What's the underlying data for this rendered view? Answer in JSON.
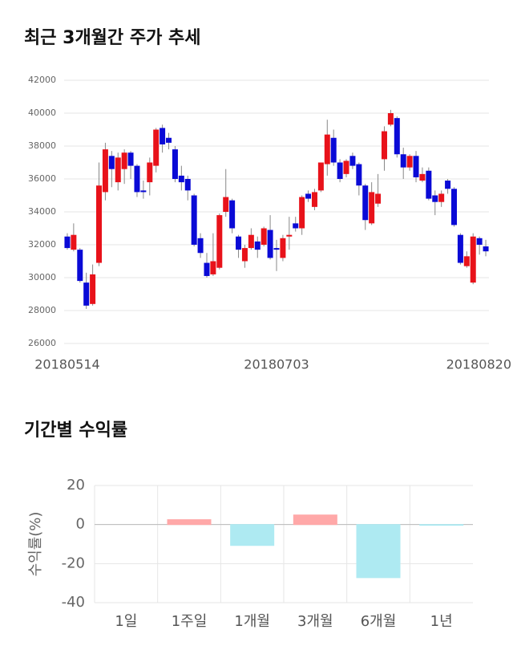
{
  "chart_data": [
    {
      "type": "candlestick",
      "title": "최근 3개월간 주가 추세",
      "categories": [
        "20180514",
        null,
        null,
        null,
        null,
        null,
        null,
        null,
        null,
        null,
        null,
        null,
        null,
        null,
        null,
        null,
        null,
        null,
        null,
        null,
        null,
        null,
        null,
        null,
        null,
        null,
        null,
        null,
        null,
        null,
        null,
        null,
        null,
        "20180703",
        null,
        null,
        null,
        null,
        null,
        null,
        null,
        null,
        null,
        null,
        null,
        null,
        null,
        null,
        null,
        null,
        null,
        null,
        null,
        null,
        null,
        null,
        null,
        null,
        null,
        null,
        null,
        null,
        null,
        null,
        null,
        null,
        "20180820"
      ],
      "open": [
        32500,
        31700,
        31700,
        29700,
        28400,
        30900,
        35200,
        37400,
        35800,
        36600,
        37600,
        36800,
        35300,
        35800,
        36800,
        39100,
        38500,
        37800,
        36200,
        36000,
        35000,
        32400,
        30900,
        30200,
        30600,
        34000,
        34700,
        32500,
        31000,
        31800,
        32200,
        32000,
        32900,
        31800,
        31200,
        32500,
        33300,
        33000,
        35100,
        34300,
        35300,
        36900,
        38500,
        37000,
        36300,
        37400,
        36900,
        35600,
        33300,
        34500,
        37200,
        39300,
        39700,
        37500,
        36700,
        37400,
        35900,
        36500,
        35000,
        34600,
        35900,
        35400,
        32600,
        30700,
        29700,
        32400,
        31900
      ],
      "high": [
        32700,
        33300,
        31800,
        30300,
        30800,
        37000,
        38200,
        37700,
        37600,
        37800,
        37700,
        36900,
        35900,
        37300,
        39100,
        39300,
        38800,
        38000,
        36800,
        36200,
        35100,
        32700,
        31500,
        32700,
        33900,
        36600,
        34800,
        32600,
        32000,
        33000,
        32500,
        33100,
        33800,
        32300,
        32600,
        33700,
        33700,
        35000,
        35300,
        35400,
        37000,
        39600,
        39000,
        37200,
        37200,
        37600,
        37000,
        35700,
        35800,
        36300,
        39200,
        40200,
        39800,
        37900,
        37500,
        37700,
        36700,
        36700,
        35300,
        35300,
        36000,
        35500,
        32700,
        31600,
        32700,
        32500,
        32300
      ],
      "low": [
        31700,
        31600,
        29700,
        28100,
        28300,
        30700,
        34700,
        35500,
        35300,
        35700,
        36000,
        34900,
        34800,
        35000,
        36400,
        37600,
        37800,
        35800,
        35300,
        34700,
        31900,
        31200,
        30000,
        30100,
        30500,
        33700,
        32700,
        31200,
        30600,
        31700,
        31200,
        31900,
        31100,
        30400,
        31000,
        31700,
        32800,
        32600,
        34600,
        34100,
        35200,
        36200,
        36800,
        35800,
        36100,
        36600,
        35000,
        32900,
        33200,
        34300,
        36500,
        39200,
        37300,
        36000,
        36500,
        35800,
        35800,
        34700,
        33800,
        34300,
        35100,
        33100,
        30800,
        30600,
        29600,
        31400,
        31300
      ],
      "close": [
        31800,
        32600,
        29800,
        28300,
        30200,
        35600,
        37800,
        36600,
        37300,
        37600,
        36800,
        35200,
        35200,
        37000,
        39000,
        38100,
        38200,
        36000,
        35800,
        35300,
        32000,
        31500,
        30100,
        31000,
        33800,
        34900,
        33000,
        31700,
        31800,
        32600,
        31700,
        33000,
        31200,
        31700,
        32400,
        32600,
        33000,
        34900,
        34800,
        35200,
        37000,
        38700,
        37000,
        36000,
        37100,
        36800,
        35600,
        33500,
        35200,
        35100,
        38900,
        40000,
        37500,
        36700,
        37400,
        36100,
        36300,
        34800,
        34600,
        35100,
        35400,
        33200,
        30900,
        31300,
        32500,
        32000,
        31600
      ],
      "up_color": "#e8121a",
      "down_color": "#0a0ad6",
      "ylim": [
        26000,
        42000
      ],
      "yticks": [
        26000,
        28000,
        30000,
        32000,
        34000,
        36000,
        38000,
        40000,
        42000
      ],
      "grid": true
    },
    {
      "type": "bar",
      "title": "기간별 수익률",
      "y_label": "수익률(%)",
      "categories": [
        "1일",
        "1주일",
        "1개월",
        "3개월",
        "6개월",
        "1년"
      ],
      "values": [
        0,
        2.5,
        -10.7,
        4.9,
        -27.2,
        -0.4
      ],
      "positive_color": "#ffa8a8",
      "negative_color": "#aeeaf2",
      "ylim": [
        -40,
        20
      ],
      "yticks": [
        -40,
        -20,
        0,
        20
      ],
      "grid": true
    }
  ]
}
